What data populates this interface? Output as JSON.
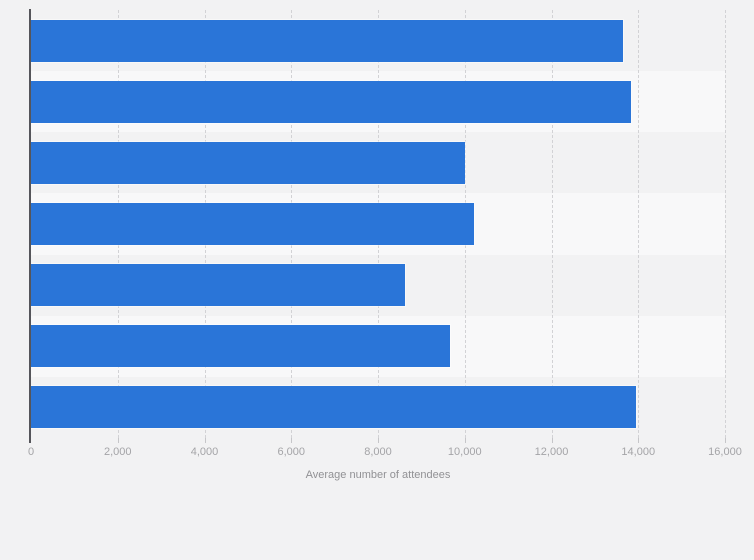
{
  "colors": {
    "background": "#f2f2f3",
    "stripe": "#f8f8f9",
    "bar": "#2a75d8",
    "gridline": "#d2d2d5",
    "axis-line": "#55555a",
    "tick-text": "#a4a4a7",
    "label-text": "#919194"
  },
  "chart_data": {
    "type": "bar",
    "orientation": "horizontal",
    "title": "",
    "xlabel": "Average number of attendees",
    "ylabel": "",
    "xlim": [
      0,
      16000
    ],
    "xticks": [
      0,
      2000,
      4000,
      6000,
      8000,
      10000,
      12000,
      14000,
      16000
    ],
    "xtick_labels": [
      "0",
      "2,000",
      "4,000",
      "6,000",
      "8,000",
      "10,000",
      "12,000",
      "14,000",
      "16,000"
    ],
    "categories": [
      "",
      "",
      "",
      "",
      "",
      "",
      ""
    ],
    "values": [
      13640,
      13830,
      10000,
      10220,
      8630,
      9650,
      13940
    ],
    "bar_color": "#2a75d8",
    "grid": "vertical",
    "gridline_style": "dashed",
    "row_striping": "alternating",
    "legend": "none"
  }
}
